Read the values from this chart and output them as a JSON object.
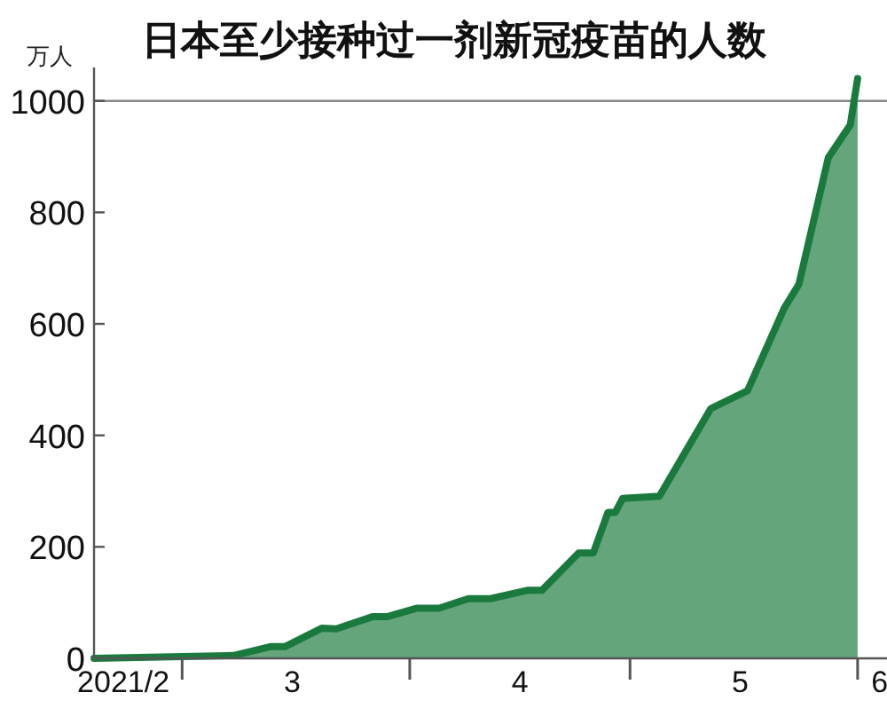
{
  "chart_data": {
    "type": "area",
    "title": "日本至少接种过一剂新冠疫苗的人数",
    "ylabel": "万人",
    "x": [
      "2021-02-17",
      "2021-03-08",
      "2021-03-13",
      "2021-03-15",
      "2021-03-20",
      "2021-03-22",
      "2021-03-27",
      "2021-03-29",
      "2021-04-02",
      "2021-04-05",
      "2021-04-09",
      "2021-04-12",
      "2021-04-17",
      "2021-04-19",
      "2021-04-24",
      "2021-04-26",
      "2021-04-28",
      "2021-04-29",
      "2021-04-30",
      "2021-05-05",
      "2021-05-12",
      "2021-05-17",
      "2021-05-22",
      "2021-05-24",
      "2021-05-28",
      "2021-05-31",
      "2021-06-01"
    ],
    "series": [
      {
        "color": "#1a7a3e",
        "values": [
          0,
          5,
          21,
          21,
          54,
          53,
          75,
          75,
          90,
          90,
          107,
          107,
          122,
          122,
          189,
          189,
          262,
          262,
          287,
          291,
          448,
          480,
          628,
          671,
          898,
          957,
          1040
        ]
      }
    ],
    "xlim": [
      "2021-02-17",
      "2021-06-05"
    ],
    "xticks": [
      {
        "value": "2021-02-21",
        "label": "2021/2"
      },
      {
        "value": "2021-03-01",
        "label": null
      },
      {
        "value": "2021-03-16",
        "label": "3"
      },
      {
        "value": "2021-04-01",
        "label": null
      },
      {
        "value": "2021-04-16",
        "label": "4"
      },
      {
        "value": "2021-05-01",
        "label": null
      },
      {
        "value": "2021-05-16",
        "label": "5"
      },
      {
        "value": "2021-06-01",
        "label": null
      },
      {
        "value": "2021-06-04",
        "label": "6"
      }
    ],
    "ylim": [
      0,
      1060
    ],
    "yticks": [
      0,
      200,
      400,
      600,
      800,
      1000
    ],
    "ref_lines": [
      {
        "axis": "y",
        "value": 1000,
        "color": "#888888"
      }
    ],
    "grid": false
  }
}
